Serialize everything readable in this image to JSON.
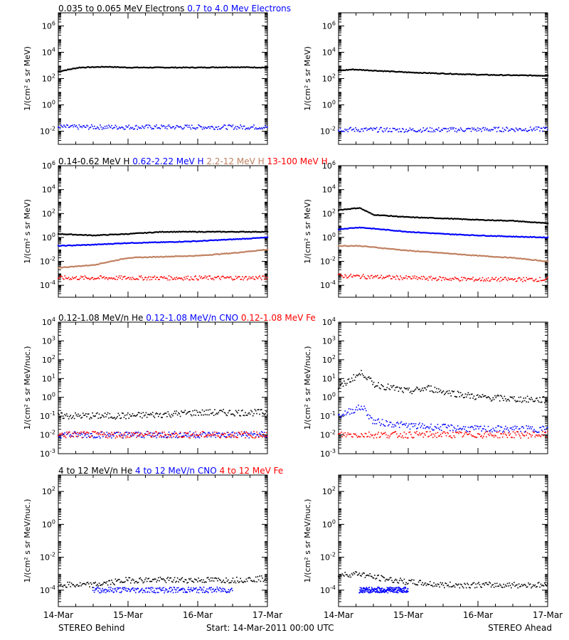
{
  "footer": {
    "left": "STEREO Behind",
    "center": "Start: 14-Mar-2011 00:00 UTC",
    "right": "STEREO Ahead"
  },
  "x_ticks": [
    "14-Mar",
    "15-Mar",
    "16-Mar",
    "17-Mar"
  ],
  "chart_data": [
    {
      "type": "scatter",
      "row_title": [
        {
          "text": "0.035 to 0.065 MeV Electrons",
          "color": "#000000"
        },
        {
          "text": "0.7 to 4.0 Mev Electrons",
          "color": "#0000ff"
        }
      ],
      "ylabel": "1/(cm² s sr MeV)",
      "yscale": "log",
      "ylim_exp": [
        -3,
        7
      ],
      "y_tick_exponents": [
        -2,
        0,
        2,
        4,
        6
      ],
      "grid": false,
      "x_range_days": [
        0,
        3
      ],
      "panels": [
        {
          "station": "STEREO Behind",
          "series": [
            {
              "color": "#000000",
              "style": "line",
              "points": [
                [
                  0,
                  350
                ],
                [
                  0.3,
                  700
                ],
                [
                  0.7,
                  800
                ],
                [
                  1,
                  700
                ],
                [
                  1.5,
                  700
                ],
                [
                  2,
                  700
                ],
                [
                  2.5,
                  750
                ],
                [
                  3,
                  700
                ]
              ]
            },
            {
              "color": "#0000ff",
              "style": "scatter",
              "points": [
                [
                  0,
                  0.02
                ],
                [
                  1,
                  0.02
                ],
                [
                  2,
                  0.02
                ],
                [
                  3,
                  0.02
                ]
              ]
            }
          ]
        },
        {
          "station": "STEREO Ahead",
          "series": [
            {
              "color": "#000000",
              "style": "line",
              "points": [
                [
                  0,
                  400
                ],
                [
                  0.2,
                  500
                ],
                [
                  1,
                  300
                ],
                [
                  2,
                  200
                ],
                [
                  2.5,
                  180
                ],
                [
                  3,
                  170
                ]
              ]
            },
            {
              "color": "#0000ff",
              "style": "scatter",
              "points": [
                [
                  0,
                  0.013
                ],
                [
                  1,
                  0.012
                ],
                [
                  2,
                  0.013
                ],
                [
                  3,
                  0.014
                ]
              ]
            }
          ]
        }
      ]
    },
    {
      "type": "scatter",
      "row_title": [
        {
          "text": "0.14-0.62 MeV H",
          "color": "#000000"
        },
        {
          "text": "0.62-2.22 MeV H",
          "color": "#0000ff"
        },
        {
          "text": "2.2-12 MeV H",
          "color": "#c08060"
        },
        {
          "text": "13-100 MeV H",
          "color": "#ff0000"
        }
      ],
      "ylabel": "1/(cm² s sr MeV)",
      "yscale": "log",
      "ylim_exp": [
        -5,
        6
      ],
      "y_tick_exponents": [
        -4,
        -2,
        0,
        2,
        4,
        6
      ],
      "grid": false,
      "x_range_days": [
        0,
        3
      ],
      "panels": [
        {
          "station": "STEREO Behind",
          "series": [
            {
              "color": "#000000",
              "style": "line",
              "points": [
                [
                  0,
                  2
                ],
                [
                  0.5,
                  1.5
                ],
                [
                  1,
                  2
                ],
                [
                  1.5,
                  3
                ],
                [
                  2,
                  3
                ],
                [
                  2.5,
                  3
                ],
                [
                  3,
                  3
                ]
              ]
            },
            {
              "color": "#0000ff",
              "style": "line",
              "points": [
                [
                  0,
                  0.2
                ],
                [
                  0.5,
                  0.25
                ],
                [
                  1,
                  0.35
                ],
                [
                  1.5,
                  0.4
                ],
                [
                  2,
                  0.5
                ],
                [
                  2.5,
                  0.7
                ],
                [
                  3,
                  1
                ]
              ]
            },
            {
              "color": "#c08060",
              "style": "line",
              "points": [
                [
                  0,
                  0.003
                ],
                [
                  0.5,
                  0.005
                ],
                [
                  1,
                  0.02
                ],
                [
                  1.5,
                  0.025
                ],
                [
                  2,
                  0.03
                ],
                [
                  2.5,
                  0.05
                ],
                [
                  3,
                  0.1
                ]
              ]
            },
            {
              "color": "#ff0000",
              "style": "scatter",
              "points": [
                [
                  0,
                  0.0004
                ],
                [
                  1,
                  0.0004
                ],
                [
                  2,
                  0.0004
                ],
                [
                  3,
                  0.0004
                ]
              ]
            }
          ]
        },
        {
          "station": "STEREO Ahead",
          "series": [
            {
              "color": "#000000",
              "style": "line",
              "points": [
                [
                  0,
                  200
                ],
                [
                  0.3,
                  300
                ],
                [
                  0.5,
                  80
                ],
                [
                  1,
                  50
                ],
                [
                  1.5,
                  40
                ],
                [
                  2,
                  30
                ],
                [
                  2.5,
                  25
                ],
                [
                  3,
                  15
                ]
              ]
            },
            {
              "color": "#0000ff",
              "style": "line",
              "points": [
                [
                  0,
                  5
                ],
                [
                  0.3,
                  7
                ],
                [
                  1,
                  3
                ],
                [
                  1.5,
                  2
                ],
                [
                  2,
                  1.5
                ],
                [
                  2.5,
                  1.2
                ],
                [
                  3,
                  1
                ]
              ]
            },
            {
              "color": "#c08060",
              "style": "line",
              "points": [
                [
                  0,
                  0.2
                ],
                [
                  0.3,
                  0.2
                ],
                [
                  1,
                  0.08
                ],
                [
                  1.5,
                  0.05
                ],
                [
                  2,
                  0.03
                ],
                [
                  2.5,
                  0.02
                ],
                [
                  3,
                  0.01
                ]
              ]
            },
            {
              "color": "#ff0000",
              "style": "scatter",
              "points": [
                [
                  0,
                  0.0006
                ],
                [
                  1,
                  0.0004
                ],
                [
                  2,
                  0.0003
                ],
                [
                  3,
                  0.0003
                ]
              ]
            }
          ]
        }
      ]
    },
    {
      "type": "scatter",
      "row_title": [
        {
          "text": "0.12-1.08 MeV/n He",
          "color": "#000000"
        },
        {
          "text": "0.12-1.08 MeV/n CNO",
          "color": "#0000ff"
        },
        {
          "text": "0.12-1.08 MeV Fe",
          "color": "#ff0000"
        }
      ],
      "ylabel": "1/(cm² s sr MeV/nuc.)",
      "yscale": "log",
      "ylim_exp": [
        -3,
        4
      ],
      "y_tick_exponents": [
        -3,
        -2,
        -1,
        0,
        1,
        2,
        3,
        4
      ],
      "grid": false,
      "x_range_days": [
        0,
        3
      ],
      "panels": [
        {
          "station": "STEREO Behind",
          "series": [
            {
              "color": "#000000",
              "style": "scatter",
              "points": [
                [
                  0,
                  0.1
                ],
                [
                  0.5,
                  0.1
                ],
                [
                  1,
                  0.1
                ],
                [
                  1.5,
                  0.12
                ],
                [
                  2,
                  0.15
                ],
                [
                  2.5,
                  0.15
                ],
                [
                  3,
                  0.15
                ]
              ]
            },
            {
              "color": "#0000ff",
              "style": "scatter",
              "points": [
                [
                  0,
                  0.01
                ],
                [
                  1,
                  0.01
                ],
                [
                  2,
                  0.01
                ],
                [
                  3,
                  0.01
                ]
              ]
            },
            {
              "color": "#ff0000",
              "style": "scatter",
              "points": [
                [
                  0,
                  0.01
                ],
                [
                  1,
                  0.01
                ],
                [
                  2,
                  0.01
                ],
                [
                  3,
                  0.01
                ]
              ]
            }
          ]
        },
        {
          "station": "STEREO Ahead",
          "series": [
            {
              "color": "#000000",
              "style": "scatter",
              "points": [
                [
                  0,
                  3
                ],
                [
                  0.2,
                  10
                ],
                [
                  0.35,
                  20
                ],
                [
                  0.5,
                  5
                ],
                [
                  1,
                  2
                ],
                [
                  1.3,
                  3
                ],
                [
                  1.5,
                  2
                ],
                [
                  2,
                  1
                ],
                [
                  2.5,
                  0.8
                ],
                [
                  3,
                  0.7
                ]
              ]
            },
            {
              "color": "#0000ff",
              "style": "scatter",
              "points": [
                [
                  0,
                  0.1
                ],
                [
                  0.2,
                  0.2
                ],
                [
                  0.35,
                  0.3
                ],
                [
                  0.5,
                  0.05
                ],
                [
                  1,
                  0.03
                ],
                [
                  2,
                  0.02
                ],
                [
                  3,
                  0.02
                ]
              ]
            },
            {
              "color": "#ff0000",
              "style": "scatter",
              "points": [
                [
                  0,
                  0.01
                ],
                [
                  1,
                  0.01
                ],
                [
                  2,
                  0.01
                ],
                [
                  3,
                  0.01
                ]
              ]
            }
          ]
        }
      ]
    },
    {
      "type": "scatter",
      "row_title": [
        {
          "text": "4 to 12 MeV/n He",
          "color": "#000000"
        },
        {
          "text": "4 to 12 MeV/n CNO",
          "color": "#0000ff"
        },
        {
          "text": "4 to 12 MeV Fe",
          "color": "#ff0000"
        }
      ],
      "ylabel": "1/(cm² s sr MeV/nuc.)",
      "yscale": "log",
      "ylim_exp": [
        -5,
        3
      ],
      "y_tick_exponents": [
        -4,
        -2,
        0,
        2
      ],
      "grid": false,
      "x_range_days": [
        0,
        3
      ],
      "panels": [
        {
          "station": "STEREO Behind",
          "series": [
            {
              "color": "#000000",
              "style": "scatter",
              "points": [
                [
                  0,
                  0.0002
                ],
                [
                  0.5,
                  0.0002
                ],
                [
                  1,
                  0.0004
                ],
                [
                  1.5,
                  0.0004
                ],
                [
                  2,
                  0.0004
                ],
                [
                  2.5,
                  0.0004
                ],
                [
                  3,
                  0.0005
                ]
              ]
            },
            {
              "color": "#0000ff",
              "style": "scatter",
              "points": [
                [
                  0.5,
                  0.0001
                ],
                [
                  1.5,
                  0.0001
                ],
                [
                  2.5,
                  0.0001
                ]
              ]
            }
          ]
        },
        {
          "station": "STEREO Ahead",
          "series": [
            {
              "color": "#000000",
              "style": "scatter",
              "points": [
                [
                  0,
                  0.0008
                ],
                [
                  0.3,
                  0.001
                ],
                [
                  0.5,
                  0.0006
                ],
                [
                  1,
                  0.0003
                ],
                [
                  1.5,
                  0.0002
                ],
                [
                  2,
                  0.0002
                ],
                [
                  3,
                  0.0002
                ]
              ]
            },
            {
              "color": "#0000ff",
              "style": "scatter",
              "points": [
                [
                  0.3,
                  0.0001
                ],
                [
                  1,
                  0.0001
                ]
              ]
            }
          ]
        }
      ]
    }
  ]
}
